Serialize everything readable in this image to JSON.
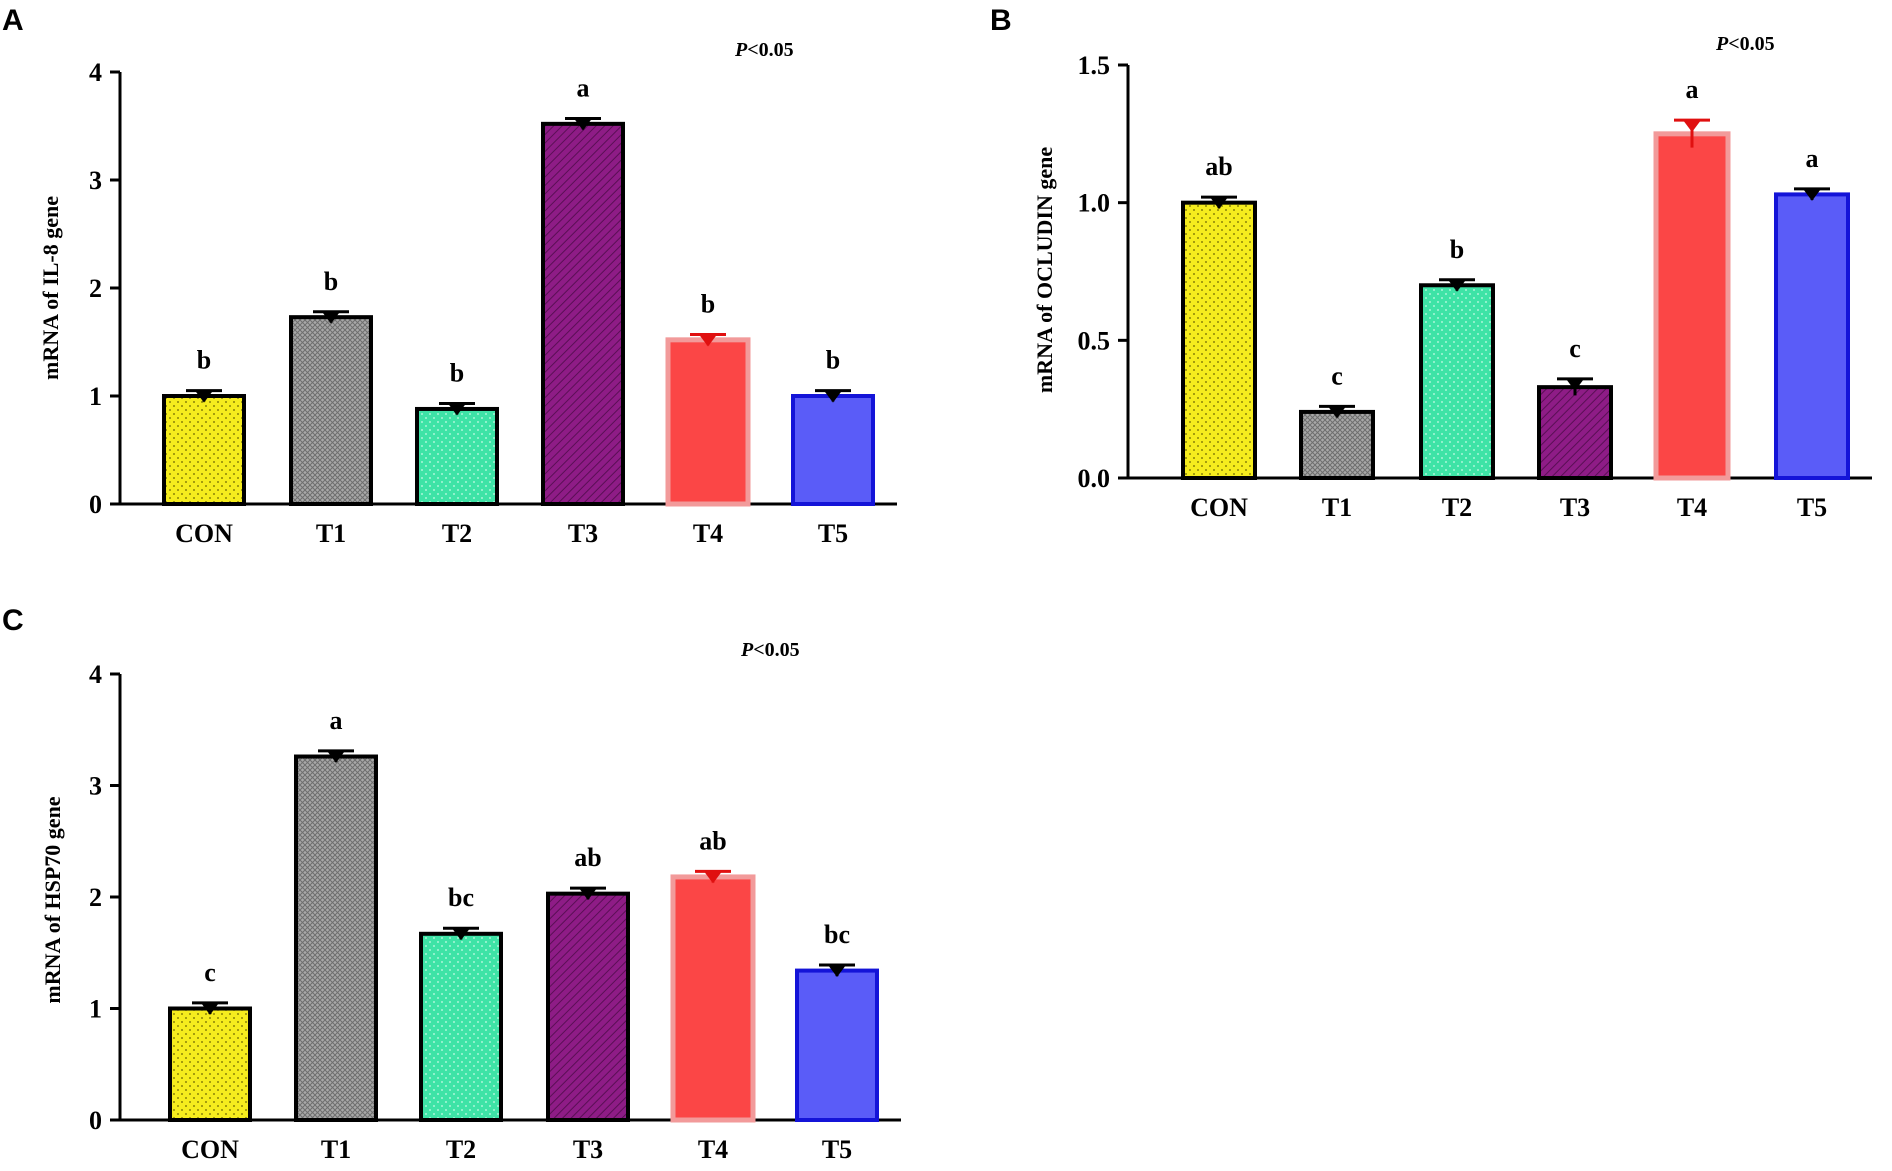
{
  "panels": [
    {
      "letter": "A",
      "chart_data": {
        "type": "bar",
        "title": "",
        "annotation_label": "P",
        "annotation_rest": "<0.05",
        "ylabel": "mRNA of IL-8 gene",
        "xlabel": "",
        "ylim": [
          0,
          4
        ],
        "yticks": [
          "0",
          "1",
          "2",
          "3",
          "4"
        ],
        "ytick_values": [
          0,
          1,
          2,
          3,
          4
        ],
        "categories": [
          "CON",
          "T1",
          "T2",
          "T3",
          "T4",
          "T5"
        ],
        "values": [
          1.0,
          1.73,
          0.88,
          3.52,
          1.52,
          1.0
        ],
        "errors": [
          0.05,
          0.05,
          0.05,
          0.05,
          0.05,
          0.05
        ],
        "letters": [
          "b",
          "b",
          "b",
          "a",
          "b",
          "b"
        ]
      }
    },
    {
      "letter": "B",
      "chart_data": {
        "type": "bar",
        "title": "",
        "annotation_label": "P",
        "annotation_rest": "<0.05",
        "ylabel": "mRNA of OCLUDIN gene",
        "xlabel": "",
        "ylim": [
          0,
          1.5
        ],
        "yticks": [
          "0.0",
          "0.5",
          "1.0",
          "1.5"
        ],
        "ytick_values": [
          0,
          0.5,
          1.0,
          1.5
        ],
        "categories": [
          "CON",
          "T1",
          "T2",
          "T3",
          "T4",
          "T5"
        ],
        "values": [
          1.0,
          0.24,
          0.7,
          0.33,
          1.25,
          1.03
        ],
        "errors": [
          0.02,
          0.02,
          0.02,
          0.03,
          0.05,
          0.02
        ],
        "letters": [
          "ab",
          "c",
          "b",
          "c",
          "a",
          "a"
        ]
      }
    },
    {
      "letter": "C",
      "chart_data": {
        "type": "bar",
        "title": "",
        "annotation_label": "P",
        "annotation_rest": "<0.05",
        "ylabel": "mRNA of HSP70 gene",
        "xlabel": "",
        "ylim": [
          0,
          4
        ],
        "yticks": [
          "0",
          "1",
          "2",
          "3",
          "4"
        ],
        "ytick_values": [
          0,
          1,
          2,
          3,
          4
        ],
        "categories": [
          "CON",
          "T1",
          "T2",
          "T3",
          "T4",
          "T5"
        ],
        "values": [
          1.0,
          3.26,
          1.67,
          2.03,
          2.18,
          1.34
        ],
        "errors": [
          0.05,
          0.05,
          0.05,
          0.05,
          0.05,
          0.05
        ],
        "letters": [
          "c",
          "a",
          "bc",
          "ab",
          "ab",
          "bc"
        ]
      }
    }
  ],
  "series_styles": [
    {
      "fill": "#f5ec1e",
      "stroke": "#000000",
      "pattern": "dots-dark",
      "err": "#000000"
    },
    {
      "fill": "#9a9a9a",
      "stroke": "#000000",
      "pattern": "cross",
      "err": "#000000"
    },
    {
      "fill": "#3ee3a6",
      "stroke": "#000000",
      "pattern": "dots-light",
      "err": "#000000"
    },
    {
      "fill": "#8e1c86",
      "stroke": "#000000",
      "pattern": "diag",
      "err": "#000000"
    },
    {
      "fill": "#fb4646",
      "stroke": "#f29a9a",
      "pattern": "none",
      "err": "#e01010"
    },
    {
      "fill": "#5a5cf8",
      "stroke": "#1414d8",
      "pattern": "none",
      "err": "#000000"
    }
  ]
}
